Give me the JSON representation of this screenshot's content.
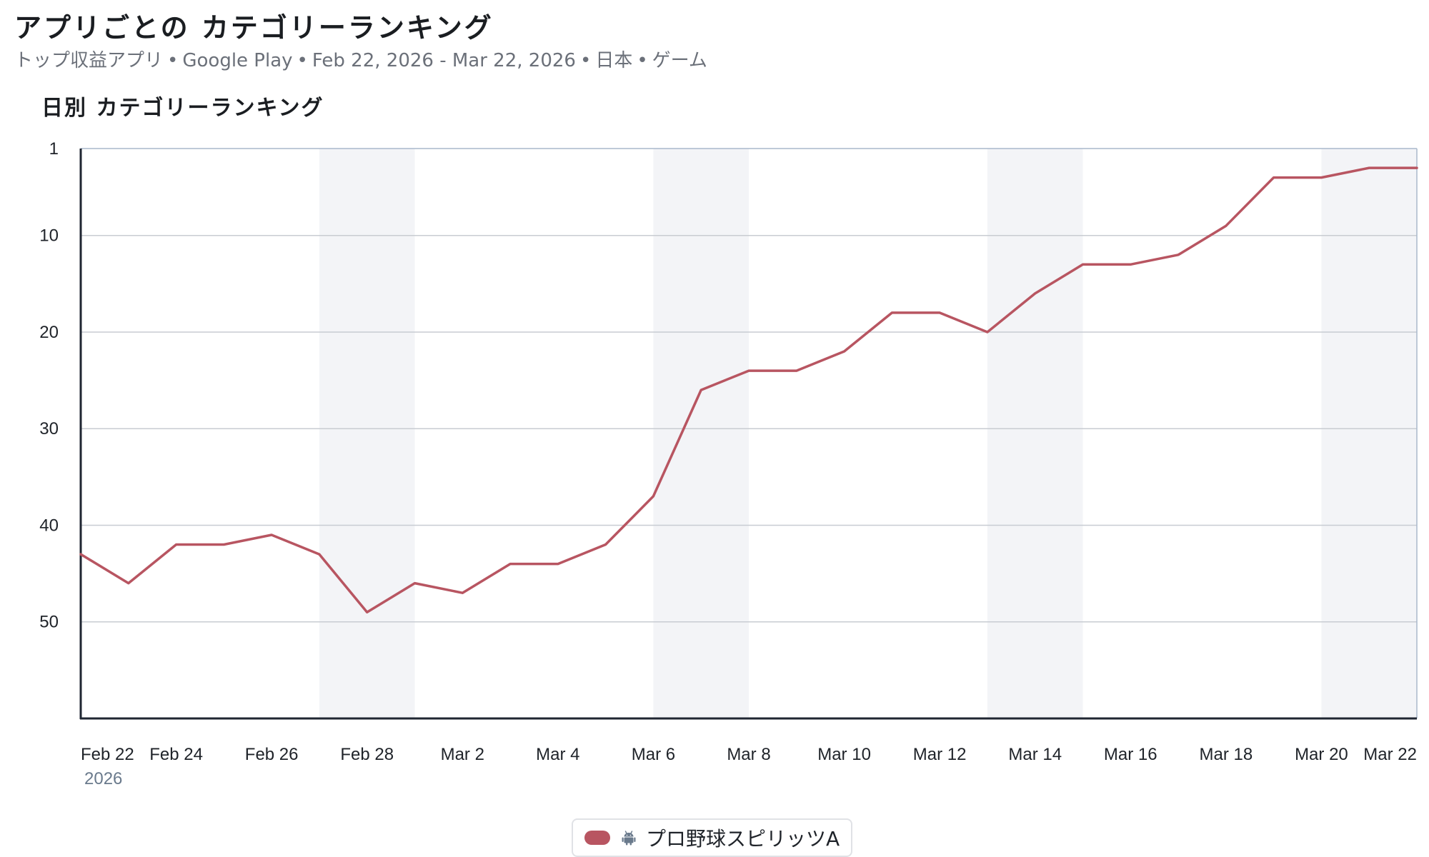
{
  "header": {
    "title": "アプリごとの カテゴリーランキング",
    "subtitle_parts": [
      "トップ収益アプリ",
      "Google Play",
      "Feb 22, 2026 - Mar 22, 2026",
      "日本",
      "ゲーム"
    ],
    "separator": "•"
  },
  "chart_data": {
    "type": "line",
    "title": "日別 カテゴリーランキング",
    "xlabel": "",
    "ylabel": "",
    "y_axis_inverted": true,
    "ylim": [
      1,
      60
    ],
    "y_ticks": [
      "1",
      "10",
      "20",
      "30",
      "40",
      "50"
    ],
    "y_tick_values": [
      1,
      10,
      20,
      30,
      40,
      50
    ],
    "x_tick_labels": [
      "Feb 22",
      "Feb 24",
      "Feb 26",
      "Feb 28",
      "Mar 2",
      "Mar 4",
      "Mar 6",
      "Mar 8",
      "Mar 10",
      "Mar 12",
      "Mar 14",
      "Mar 16",
      "Mar 18",
      "Mar 20",
      "Mar 22"
    ],
    "x_tick_dates": [
      "2026-02-22",
      "2026-02-24",
      "2026-02-26",
      "2026-02-28",
      "2026-03-02",
      "2026-03-04",
      "2026-03-06",
      "2026-03-08",
      "2026-03-10",
      "2026-03-12",
      "2026-03-14",
      "2026-03-16",
      "2026-03-18",
      "2026-03-20",
      "2026-03-22"
    ],
    "year_label": "2026",
    "weekend_bands": [
      [
        "2026-02-27",
        "2026-02-28"
      ],
      [
        "2026-03-06",
        "2026-03-07"
      ],
      [
        "2026-03-13",
        "2026-03-14"
      ],
      [
        "2026-03-20",
        "2026-03-22"
      ]
    ],
    "grid": true,
    "legend_position": "bottom-center",
    "series": [
      {
        "name": "プロ野球スピリッツA",
        "platform_icon": "android-icon",
        "color": "#b85561",
        "x": [
          "2026-02-22",
          "2026-02-23",
          "2026-02-24",
          "2026-02-25",
          "2026-02-26",
          "2026-02-27",
          "2026-02-28",
          "2026-03-01",
          "2026-03-02",
          "2026-03-03",
          "2026-03-04",
          "2026-03-05",
          "2026-03-06",
          "2026-03-07",
          "2026-03-08",
          "2026-03-09",
          "2026-03-10",
          "2026-03-11",
          "2026-03-12",
          "2026-03-13",
          "2026-03-14",
          "2026-03-15",
          "2026-03-16",
          "2026-03-17",
          "2026-03-18",
          "2026-03-19",
          "2026-03-20",
          "2026-03-21",
          "2026-03-22"
        ],
        "values": [
          43,
          46,
          42,
          42,
          41,
          43,
          49,
          46,
          47,
          44,
          44,
          42,
          37,
          26,
          24,
          24,
          22,
          18,
          18,
          20,
          16,
          13,
          13,
          12,
          9,
          4,
          4,
          3,
          3
        ]
      }
    ]
  },
  "colors": {
    "line": "#b85561",
    "band": "#f3f4f7",
    "grid": "#c8ccd2",
    "axis": "#1f2632",
    "border": "#a9b8cc"
  }
}
